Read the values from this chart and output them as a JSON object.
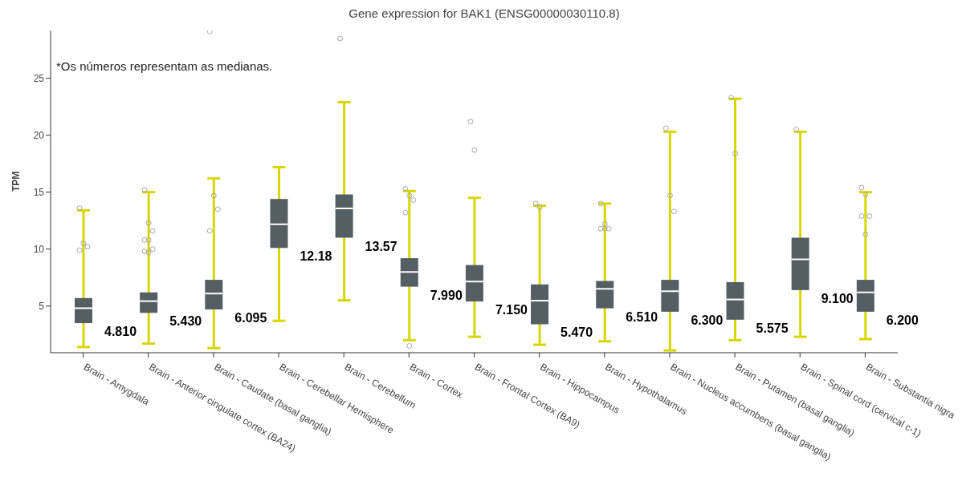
{
  "chart_data": {
    "type": "box",
    "title": "Gene expression for BAK1 (ENSG00000030110.8)",
    "ylabel": "TPM",
    "annotations": [
      "*Os números representam as medianas."
    ],
    "categories": [
      "Brain - Amygdala",
      "Brain - Anterior cingulate cortex (BA24)",
      "Brain - Caudate (basal ganglia)",
      "Brain - Cerebellar Hemisphere",
      "Brain - Cerebellum",
      "Brain - Cortex",
      "Brain - Frontal Cortex (BA9)",
      "Brain - Hippocampus",
      "Brain - Hypothalamus",
      "Brain - Nucleus accumbens (basal ganglia)",
      "Brain - Putamen (basal ganglia)",
      "Brain - Spinal cord (cervical c-1)",
      "Brain - Substantia nigra"
    ],
    "series": [
      {
        "color": "#555e63",
        "boxes": [
          {
            "low": 1.4,
            "q1": 3.5,
            "median": 4.81,
            "q3": 5.7,
            "high": 13.4,
            "outliers": [
              13.6,
              10.5,
              10.2,
              9.9
            ]
          },
          {
            "low": 1.7,
            "q1": 4.4,
            "median": 5.43,
            "q3": 6.2,
            "high": 15.0,
            "outliers": [
              15.2,
              12.3,
              11.6,
              10.8,
              10.8,
              10.0,
              9.8,
              9.7
            ]
          },
          {
            "low": 1.3,
            "q1": 4.7,
            "median": 6.095,
            "q3": 7.3,
            "high": 16.2,
            "outliers": [
              29.1,
              14.7,
              13.5,
              11.6
            ]
          },
          {
            "low": 3.7,
            "q1": 10.1,
            "median": 12.18,
            "q3": 14.4,
            "high": 17.2
          },
          {
            "low": 5.5,
            "q1": 11.0,
            "median": 13.57,
            "q3": 14.8,
            "high": 22.9,
            "outliers": [
              28.5
            ]
          },
          {
            "low": 2.0,
            "q1": 6.7,
            "median": 7.99,
            "q3": 9.2,
            "high": 15.1,
            "outliers": [
              15.3,
              14.7,
              14.3,
              13.2,
              1.5
            ]
          },
          {
            "low": 2.3,
            "q1": 5.4,
            "median": 7.15,
            "q3": 8.6,
            "high": 14.5,
            "outliers": [
              21.2,
              18.7
            ]
          },
          {
            "low": 1.6,
            "q1": 3.4,
            "median": 5.47,
            "q3": 6.9,
            "high": 13.8,
            "outliers": [
              14.0,
              13.7
            ]
          },
          {
            "low": 1.9,
            "q1": 4.8,
            "median": 6.51,
            "q3": 7.2,
            "high": 14.0,
            "outliers": [
              14.0,
              12.2,
              11.8,
              11.8,
              11.8
            ]
          },
          {
            "low": 1.1,
            "q1": 4.5,
            "median": 6.3,
            "q3": 7.3,
            "high": 20.3,
            "outliers": [
              20.6,
              14.7,
              13.3
            ]
          },
          {
            "low": 2.0,
            "q1": 3.8,
            "median": 5.575,
            "q3": 7.1,
            "high": 23.2,
            "outliers": [
              23.3,
              18.4
            ]
          },
          {
            "low": 2.3,
            "q1": 6.4,
            "median": 9.1,
            "q3": 11.0,
            "high": 20.3,
            "outliers": [
              20.5
            ]
          },
          {
            "low": 2.1,
            "q1": 4.5,
            "median": 6.2,
            "q3": 7.3,
            "high": 15.0,
            "outliers": [
              15.4,
              14.8,
              12.9,
              12.9,
              11.3
            ]
          }
        ],
        "value_labels": [
          "4.810",
          "5.430",
          "6.095",
          "12.18",
          "13.57",
          "7.990",
          "7.150",
          "5.470",
          "6.510",
          "6.300",
          "5.575",
          "9.100",
          "6.200"
        ]
      }
    ],
    "ylim": [
      0.9,
      29.2
    ],
    "yticks": [
      5,
      10,
      15,
      20,
      25
    ],
    "grid": false,
    "legend": false
  }
}
